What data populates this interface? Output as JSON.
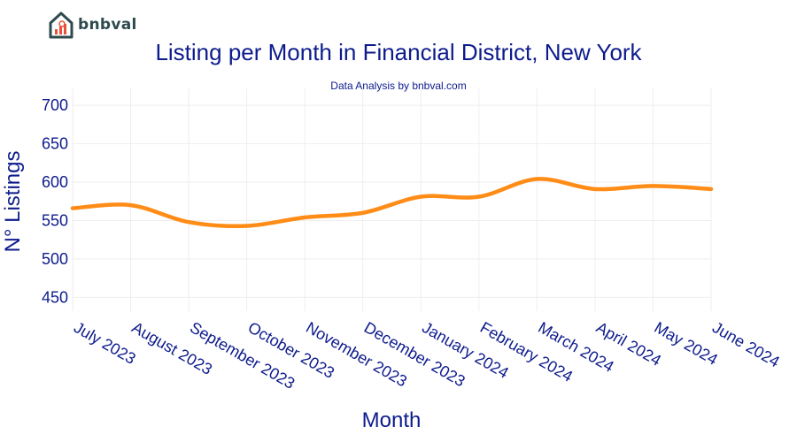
{
  "brand": {
    "name": "bnbval",
    "logo_icon": "house-chart-icon",
    "logo_color": "#2d4a4e",
    "accent_color": "#e8523a"
  },
  "chart_data": {
    "type": "line",
    "title": "Listing per Month in Financial District, New York",
    "subtitle": "Data Analysis by bnbval.com",
    "xlabel": "Month",
    "ylabel": "N° Listings",
    "categories": [
      "July 2023",
      "August 2023",
      "September 2023",
      "October 2023",
      "November 2023",
      "December 2023",
      "January 2024",
      "February 2024",
      "March 2024",
      "April 2024",
      "May 2024",
      "June 2024"
    ],
    "series": [
      {
        "values": [
          566,
          570,
          548,
          543,
          554,
          560,
          581,
          581,
          604,
          591,
          595,
          591
        ],
        "color": "#ff8c16"
      }
    ],
    "yticks": [
      450,
      500,
      550,
      600,
      650,
      700
    ],
    "ylim": [
      432,
      722
    ],
    "grid": true,
    "smooth": true,
    "text_color": "#0d1b8c",
    "grid_color": "#eeeeee"
  }
}
